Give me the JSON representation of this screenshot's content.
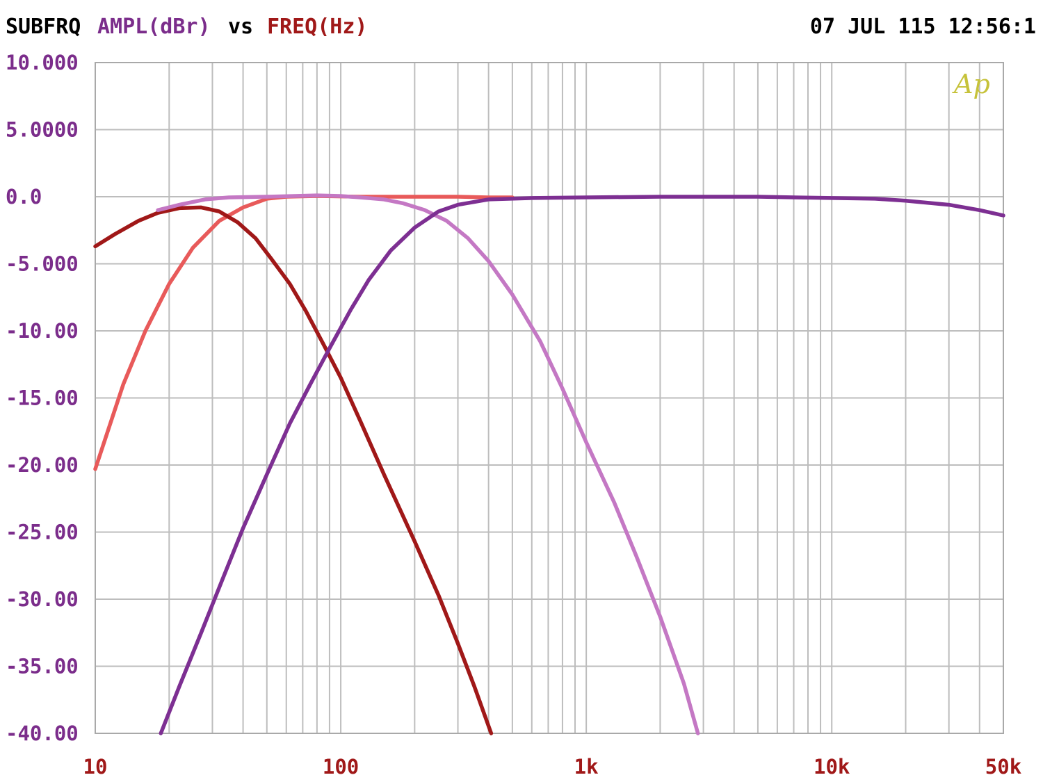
{
  "header": {
    "label": "SUBFRQ",
    "y_quantity": "AMPL(dBr)",
    "connector": "vs",
    "x_quantity": "FREQ(Hz)",
    "timestamp": "07 JUL 115 12:56:1",
    "label_color": "#000000",
    "y_color": "#7b2d8b",
    "x_color": "#a01818"
  },
  "logo": {
    "text": "Ap",
    "color": "#c6c23a"
  },
  "chart_data": {
    "type": "line",
    "xscale": "log",
    "xlim": [
      10,
      50000
    ],
    "ylim": [
      -40,
      10
    ],
    "grid": true,
    "y_ticks": [
      {
        "value": 10,
        "label": "10.000"
      },
      {
        "value": 5,
        "label": "5.0000"
      },
      {
        "value": 0,
        "label": "0.0"
      },
      {
        "value": -5,
        "label": "-5.000"
      },
      {
        "value": -10,
        "label": "-10.00"
      },
      {
        "value": -15,
        "label": "-15.00"
      },
      {
        "value": -20,
        "label": "-20.00"
      },
      {
        "value": -25,
        "label": "-25.00"
      },
      {
        "value": -30,
        "label": "-30.00"
      },
      {
        "value": -35,
        "label": "-35.00"
      },
      {
        "value": -40,
        "label": "-40.00"
      }
    ],
    "x_ticks": [
      {
        "value": 10,
        "label": "10"
      },
      {
        "value": 100,
        "label": "100"
      },
      {
        "value": 1000,
        "label": "1k"
      },
      {
        "value": 10000,
        "label": "10k"
      },
      {
        "value": 50000,
        "label": "50k"
      }
    ],
    "series": [
      {
        "color": "#e85a5a",
        "points": [
          [
            10,
            -20.3
          ],
          [
            13,
            -14
          ],
          [
            16,
            -10
          ],
          [
            20,
            -6.5
          ],
          [
            25,
            -3.8
          ],
          [
            32,
            -1.8
          ],
          [
            40,
            -0.8
          ],
          [
            50,
            -0.15
          ],
          [
            60,
            0.0
          ],
          [
            80,
            0.05
          ],
          [
            120,
            0.0
          ],
          [
            200,
            0.0
          ],
          [
            300,
            0.0
          ],
          [
            400,
            -0.05
          ],
          [
            500,
            -0.05
          ]
        ]
      },
      {
        "color": "#a01818",
        "points": [
          [
            10,
            -3.7
          ],
          [
            12,
            -2.8
          ],
          [
            15,
            -1.8
          ],
          [
            18,
            -1.2
          ],
          [
            22,
            -0.85
          ],
          [
            27,
            -0.8
          ],
          [
            32,
            -1.1
          ],
          [
            38,
            -1.9
          ],
          [
            45,
            -3.1
          ],
          [
            52,
            -4.6
          ],
          [
            62,
            -6.5
          ],
          [
            72,
            -8.5
          ],
          [
            85,
            -11
          ],
          [
            100,
            -13.5
          ],
          [
            120,
            -16.7
          ],
          [
            150,
            -20.7
          ],
          [
            200,
            -25.7
          ],
          [
            250,
            -29.7
          ],
          [
            300,
            -33.3
          ],
          [
            350,
            -36.5
          ],
          [
            410,
            -40
          ]
        ]
      },
      {
        "color": "#c478c4",
        "points": [
          [
            18,
            -1.0
          ],
          [
            22,
            -0.6
          ],
          [
            28,
            -0.2
          ],
          [
            35,
            -0.05
          ],
          [
            50,
            0.0
          ],
          [
            80,
            0.1
          ],
          [
            100,
            0.05
          ],
          [
            120,
            -0.05
          ],
          [
            150,
            -0.2
          ],
          [
            180,
            -0.5
          ],
          [
            220,
            -1.0
          ],
          [
            270,
            -1.8
          ],
          [
            330,
            -3.1
          ],
          [
            400,
            -4.8
          ],
          [
            500,
            -7.3
          ],
          [
            650,
            -10.8
          ],
          [
            800,
            -14.3
          ],
          [
            1000,
            -18.3
          ],
          [
            1300,
            -22.8
          ],
          [
            1600,
            -26.8
          ],
          [
            2000,
            -31.3
          ],
          [
            2500,
            -36.3
          ],
          [
            2850,
            -40
          ]
        ]
      },
      {
        "color": "#7d2f92",
        "points": [
          [
            18.5,
            -40
          ],
          [
            22,
            -36.5
          ],
          [
            27,
            -32.5
          ],
          [
            33,
            -28.5
          ],
          [
            40,
            -24.7
          ],
          [
            50,
            -20.7
          ],
          [
            62,
            -16.9
          ],
          [
            75,
            -14
          ],
          [
            90,
            -11.3
          ],
          [
            110,
            -8.4
          ],
          [
            130,
            -6.2
          ],
          [
            160,
            -4.0
          ],
          [
            200,
            -2.3
          ],
          [
            250,
            -1.1
          ],
          [
            300,
            -0.6
          ],
          [
            400,
            -0.2
          ],
          [
            600,
            -0.1
          ],
          [
            1000,
            -0.05
          ],
          [
            2000,
            0.0
          ],
          [
            5000,
            0.0
          ],
          [
            10000,
            -0.1
          ],
          [
            15000,
            -0.15
          ],
          [
            20000,
            -0.3
          ],
          [
            30000,
            -0.6
          ],
          [
            40000,
            -1.0
          ],
          [
            50000,
            -1.4
          ]
        ]
      }
    ]
  }
}
